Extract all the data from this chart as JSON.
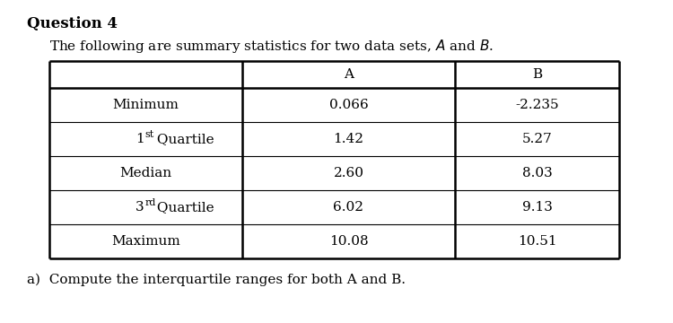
{
  "title": "Question 4",
  "col_A": [
    "0.066",
    "1.42",
    "2.60",
    "6.02",
    "10.08"
  ],
  "col_B": [
    "-2.235",
    "5.27",
    "8.03",
    "9.13",
    "10.51"
  ],
  "row_labels": [
    "Minimum",
    "1 Quartile",
    "Median",
    "3 Quartile",
    "Maximum"
  ],
  "row_supers": [
    "",
    "st",
    "",
    "rd",
    ""
  ],
  "footer_text": "a)  Compute the interquartile ranges for both A and B.",
  "bg_color": "#ffffff",
  "text_color": "#000000",
  "font_size_title": 12,
  "font_size_body": 11,
  "font_size_sub": 8
}
